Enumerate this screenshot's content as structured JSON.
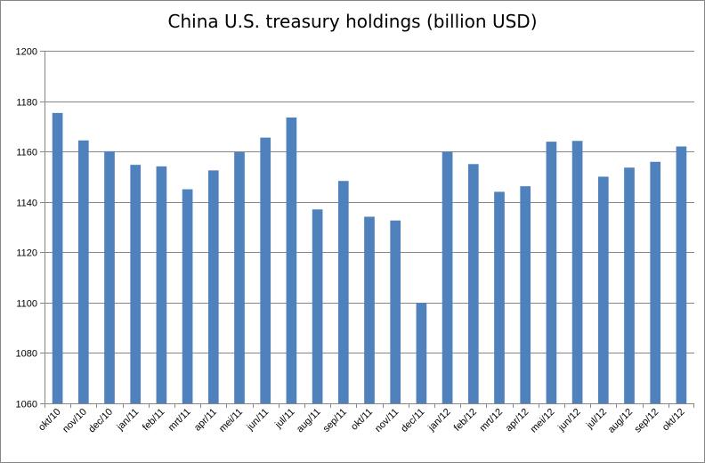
{
  "chart_data": {
    "type": "bar",
    "title": "China U.S. treasury holdings (billion USD)",
    "xlabel": "",
    "ylabel": "",
    "categories": [
      "okt/10",
      "nov/10",
      "dec/10",
      "jan/11",
      "feb/11",
      "mrt/11",
      "apr/11",
      "mei/11",
      "jun/11",
      "jul/11",
      "aug/11",
      "sep/11",
      "okt/11",
      "nov/11",
      "dec/11",
      "jan/12",
      "feb/12",
      "mrt/12",
      "apr/12",
      "mei/12",
      "jun/12",
      "jul/12",
      "aug/12",
      "sep/12",
      "okt/12"
    ],
    "values": [
      1175.3,
      1164.4,
      1160.1,
      1154.7,
      1154.1,
      1145.0,
      1152.5,
      1159.8,
      1165.5,
      1173.5,
      1137.0,
      1148.3,
      1134.1,
      1132.6,
      1099.9,
      1160.0,
      1155.0,
      1144.0,
      1146.2,
      1163.9,
      1164.2,
      1150.0,
      1153.6,
      1155.9,
      1162.0
    ],
    "ylim": [
      1060,
      1200
    ],
    "yticks": [
      1060,
      1080,
      1100,
      1120,
      1140,
      1160,
      1180,
      1200
    ],
    "grid": true,
    "legend": "none",
    "bar_color": "#4f81bd",
    "grid_color": "#868686"
  }
}
